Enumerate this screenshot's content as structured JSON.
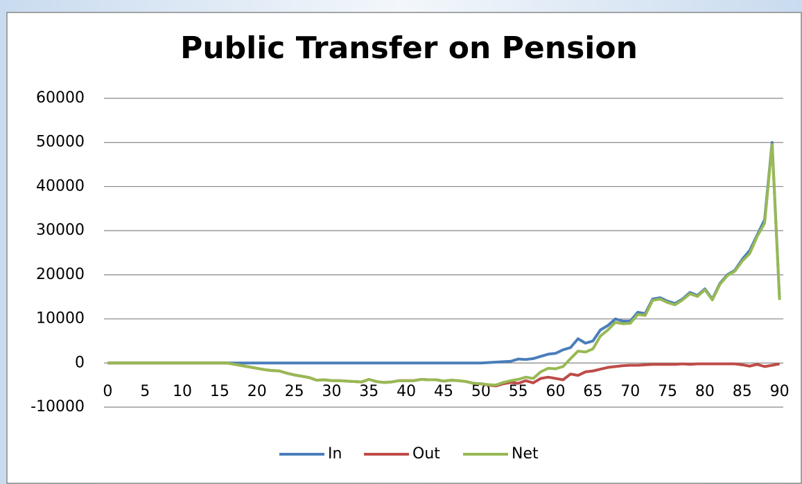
{
  "chart_data": {
    "type": "line",
    "title": "Public Transfer on Pension",
    "categories": [
      0,
      null,
      null,
      null,
      null,
      5,
      null,
      null,
      null,
      null,
      10,
      null,
      null,
      null,
      null,
      15,
      null,
      null,
      null,
      null,
      20,
      null,
      null,
      null,
      null,
      25,
      null,
      null,
      null,
      null,
      30,
      null,
      null,
      null,
      null,
      35,
      null,
      null,
      null,
      null,
      40,
      null,
      null,
      null,
      null,
      45,
      null,
      null,
      null,
      null,
      50,
      null,
      null,
      null,
      null,
      55,
      null,
      null,
      null,
      null,
      60,
      null,
      null,
      null,
      null,
      65,
      null,
      null,
      null,
      null,
      70,
      null,
      null,
      null,
      null,
      75,
      null,
      null,
      null,
      null,
      80,
      null,
      null,
      null,
      null,
      85,
      null,
      null,
      null,
      null,
      90
    ],
    "series": [
      {
        "name": "In",
        "color": "#4a7ebb",
        "values": [
          0,
          0,
          0,
          0,
          0,
          0,
          0,
          0,
          0,
          0,
          0,
          0,
          0,
          0,
          0,
          0,
          0,
          0,
          0,
          0,
          0,
          0,
          0,
          0,
          0,
          0,
          0,
          0,
          0,
          0,
          0,
          0,
          0,
          0,
          0,
          0,
          0,
          0,
          0,
          0,
          0,
          0,
          0,
          0,
          0,
          0,
          0,
          0,
          0,
          0,
          0,
          100,
          200,
          300,
          400,
          900,
          800,
          1000,
          1500,
          2000,
          2200,
          3000,
          3500,
          5500,
          4500,
          5000,
          7500,
          8500,
          10000,
          9500,
          9500,
          11500,
          11200,
          14500,
          14800,
          14000,
          13500,
          14500,
          16000,
          15300,
          16800,
          14500,
          18000,
          20000,
          21000,
          23500,
          25500,
          29000,
          32500,
          50000,
          14500
        ]
      },
      {
        "name": "Out",
        "color": "#be4b48",
        "values": [
          0,
          0,
          0,
          0,
          0,
          0,
          0,
          0,
          0,
          0,
          0,
          0,
          0,
          0,
          0,
          0,
          0,
          -300,
          -600,
          -900,
          -1200,
          -1500,
          -1700,
          -1800,
          -2300,
          -2700,
          -3000,
          -3300,
          -3900,
          -3800,
          -4000,
          -4000,
          -4100,
          -4200,
          -4300,
          -3700,
          -4200,
          -4400,
          -4300,
          -4000,
          -4000,
          -4000,
          -3700,
          -3800,
          -3800,
          -4100,
          -3900,
          -4000,
          -4200,
          -4600,
          -4700,
          -5000,
          -5200,
          -4700,
          -4400,
          -4600,
          -4000,
          -4500,
          -3500,
          -3200,
          -3500,
          -3800,
          -2500,
          -2800,
          -2000,
          -1800,
          -1400,
          -1000,
          -800,
          -600,
          -500,
          -500,
          -400,
          -300,
          -300,
          -300,
          -300,
          -200,
          -300,
          -200,
          -200,
          -200,
          -200,
          -200,
          -200,
          -400,
          -700,
          -300,
          -800,
          -500,
          -200
        ]
      },
      {
        "name": "Net",
        "color": "#98b954",
        "values": [
          0,
          0,
          0,
          0,
          0,
          0,
          0,
          0,
          0,
          0,
          0,
          0,
          0,
          0,
          0,
          0,
          0,
          -300,
          -600,
          -900,
          -1200,
          -1500,
          -1700,
          -1800,
          -2300,
          -2700,
          -3000,
          -3300,
          -3900,
          -3800,
          -4000,
          -4000,
          -4100,
          -4200,
          -4300,
          -3700,
          -4200,
          -4400,
          -4300,
          -4000,
          -4000,
          -4000,
          -3700,
          -3800,
          -3800,
          -4100,
          -3900,
          -4000,
          -4200,
          -4600,
          -4700,
          -4900,
          -5000,
          -4400,
          -4000,
          -3700,
          -3200,
          -3500,
          -2000,
          -1200,
          -1300,
          -800,
          1000,
          2700,
          2500,
          3200,
          6100,
          7500,
          9200,
          8900,
          9000,
          11000,
          10800,
          14200,
          14500,
          13700,
          13200,
          14300,
          15700,
          15100,
          16600,
          14300,
          17800,
          19800,
          20800,
          23100,
          24800,
          28700,
          31700,
          49500,
          14300
        ]
      }
    ],
    "ylim": [
      -10000,
      60000
    ],
    "yticks": [
      -10000,
      0,
      10000,
      20000,
      30000,
      40000,
      50000,
      60000
    ],
    "grid": true
  }
}
